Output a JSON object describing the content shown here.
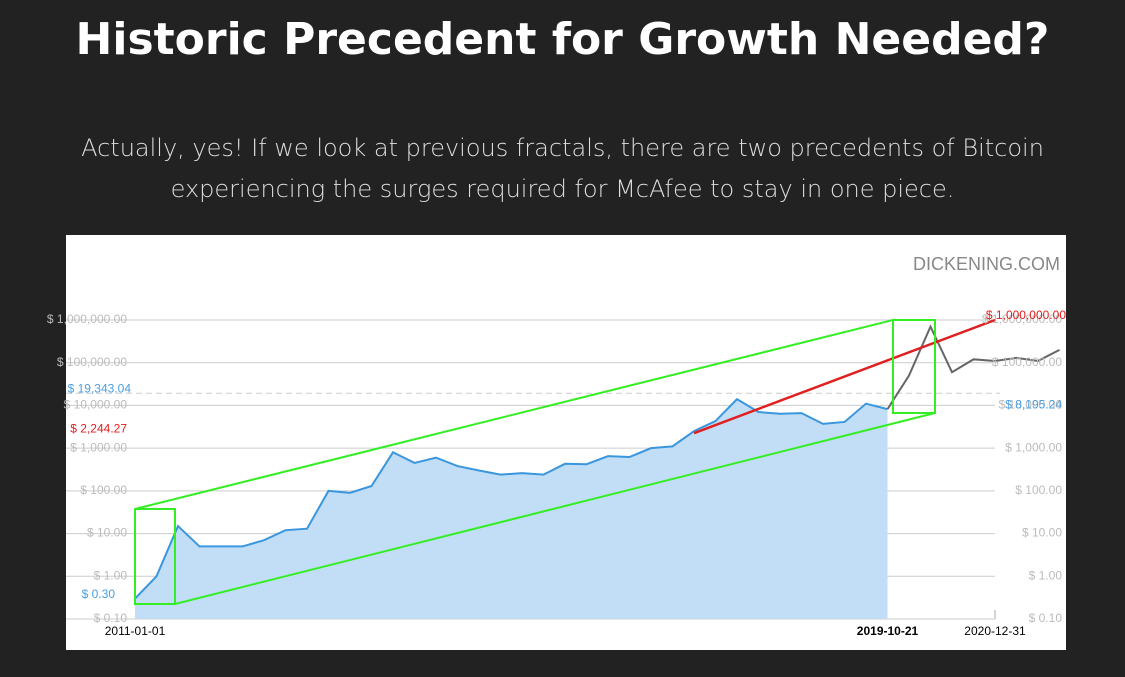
{
  "header": {
    "title": "Historic Precedent for Growth Needed?",
    "paragraph": [
      "Actually, yes! If we look at previous fractals, there are two precedents of Bitcoin",
      "experiencing the surges required for McAfee to stay in one piece."
    ]
  },
  "chart_data": {
    "type": "line",
    "watermark": "DICKENING.COM",
    "log_scale": true,
    "grid": true,
    "area": true,
    "categories": [
      "2011-01-01",
      null,
      null,
      null,
      null,
      null,
      null,
      null,
      null,
      null,
      null,
      null,
      null,
      null,
      null,
      null,
      null,
      null,
      null,
      null,
      null,
      null,
      null,
      null,
      null,
      null,
      null,
      null,
      null,
      null,
      null,
      null,
      null,
      null,
      null,
      "2019-10-21",
      null,
      null,
      null,
      null,
      "2020-12-31",
      null,
      null,
      null
    ],
    "series": [
      {
        "color": "#3a96dd",
        "values": [
          0.3,
          1,
          15,
          5,
          5,
          5,
          7,
          12,
          13,
          100,
          90,
          130,
          800,
          450,
          600,
          380,
          300,
          240,
          260,
          240,
          430,
          420,
          650,
          620,
          1000,
          1100,
          2500,
          4300,
          14000,
          7000,
          6400,
          6600,
          3700,
          4100,
          11000,
          8195.24,
          null,
          null,
          null,
          null,
          null,
          null,
          null,
          null
        ]
      },
      {
        "color": "#666666",
        "values": [
          null,
          null,
          null,
          null,
          null,
          null,
          null,
          null,
          null,
          null,
          null,
          null,
          null,
          null,
          null,
          null,
          null,
          null,
          null,
          null,
          null,
          null,
          null,
          null,
          null,
          null,
          null,
          null,
          null,
          null,
          null,
          null,
          null,
          null,
          null,
          8195.24,
          50000,
          700000,
          60000,
          120000,
          110000,
          130000,
          110000,
          200000
        ]
      }
    ],
    "ylim": [
      0.1,
      1000000
    ],
    "yticks": [
      {
        "value": 0.1,
        "label": "$ 0.10"
      },
      {
        "value": 1,
        "label": "$ 1.00"
      },
      {
        "value": 10,
        "label": "$ 10.00"
      },
      {
        "value": 100,
        "label": "$ 100.00"
      },
      {
        "value": 1000,
        "label": "$ 1,000.00"
      },
      {
        "value": 10000,
        "label": "$ 10,000.00"
      },
      {
        "value": 100000,
        "label": "$ 100,000.00"
      },
      {
        "value": 1000000,
        "label": "$ 1,000,000.00"
      }
    ],
    "annotations": [
      {
        "label": "$ 19,343.04",
        "value": 19343.04,
        "color": "#4a9ee0"
      },
      {
        "label": "$ 2,244.27",
        "value": 2244.27,
        "color": "#e02020"
      },
      {
        "label": "$ 0.30",
        "value": 0.3,
        "color": "#4a9ee0"
      },
      {
        "label": "$ 8,195.24",
        "value": 8195.24,
        "color": "#4a9ee0"
      },
      {
        "label": "$ 1,000,000.00",
        "value": 1000000,
        "color": "#e02020"
      }
    ]
  }
}
